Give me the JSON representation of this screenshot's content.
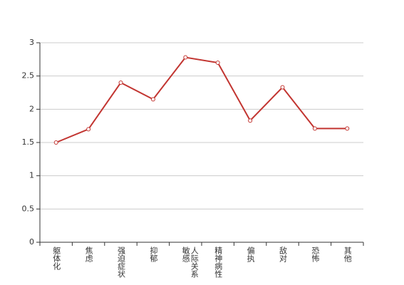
{
  "chart_data": {
    "type": "line",
    "categories": [
      "躯体化",
      "焦虑",
      "强迫症状",
      "抑郁",
      "人际关系敏感",
      "精神病性",
      "偏执",
      "敌对",
      "恐怖",
      "其他"
    ],
    "series": [
      {
        "color": "#c23531",
        "values": [
          1.5,
          1.7,
          2.4,
          2.15,
          2.78,
          2.7,
          1.83,
          2.33,
          1.71,
          1.71
        ]
      }
    ],
    "ylim": [
      0,
      3
    ],
    "yticks": [
      0,
      0.5,
      1,
      1.5,
      2,
      2.5,
      3
    ],
    "grid": true
  }
}
